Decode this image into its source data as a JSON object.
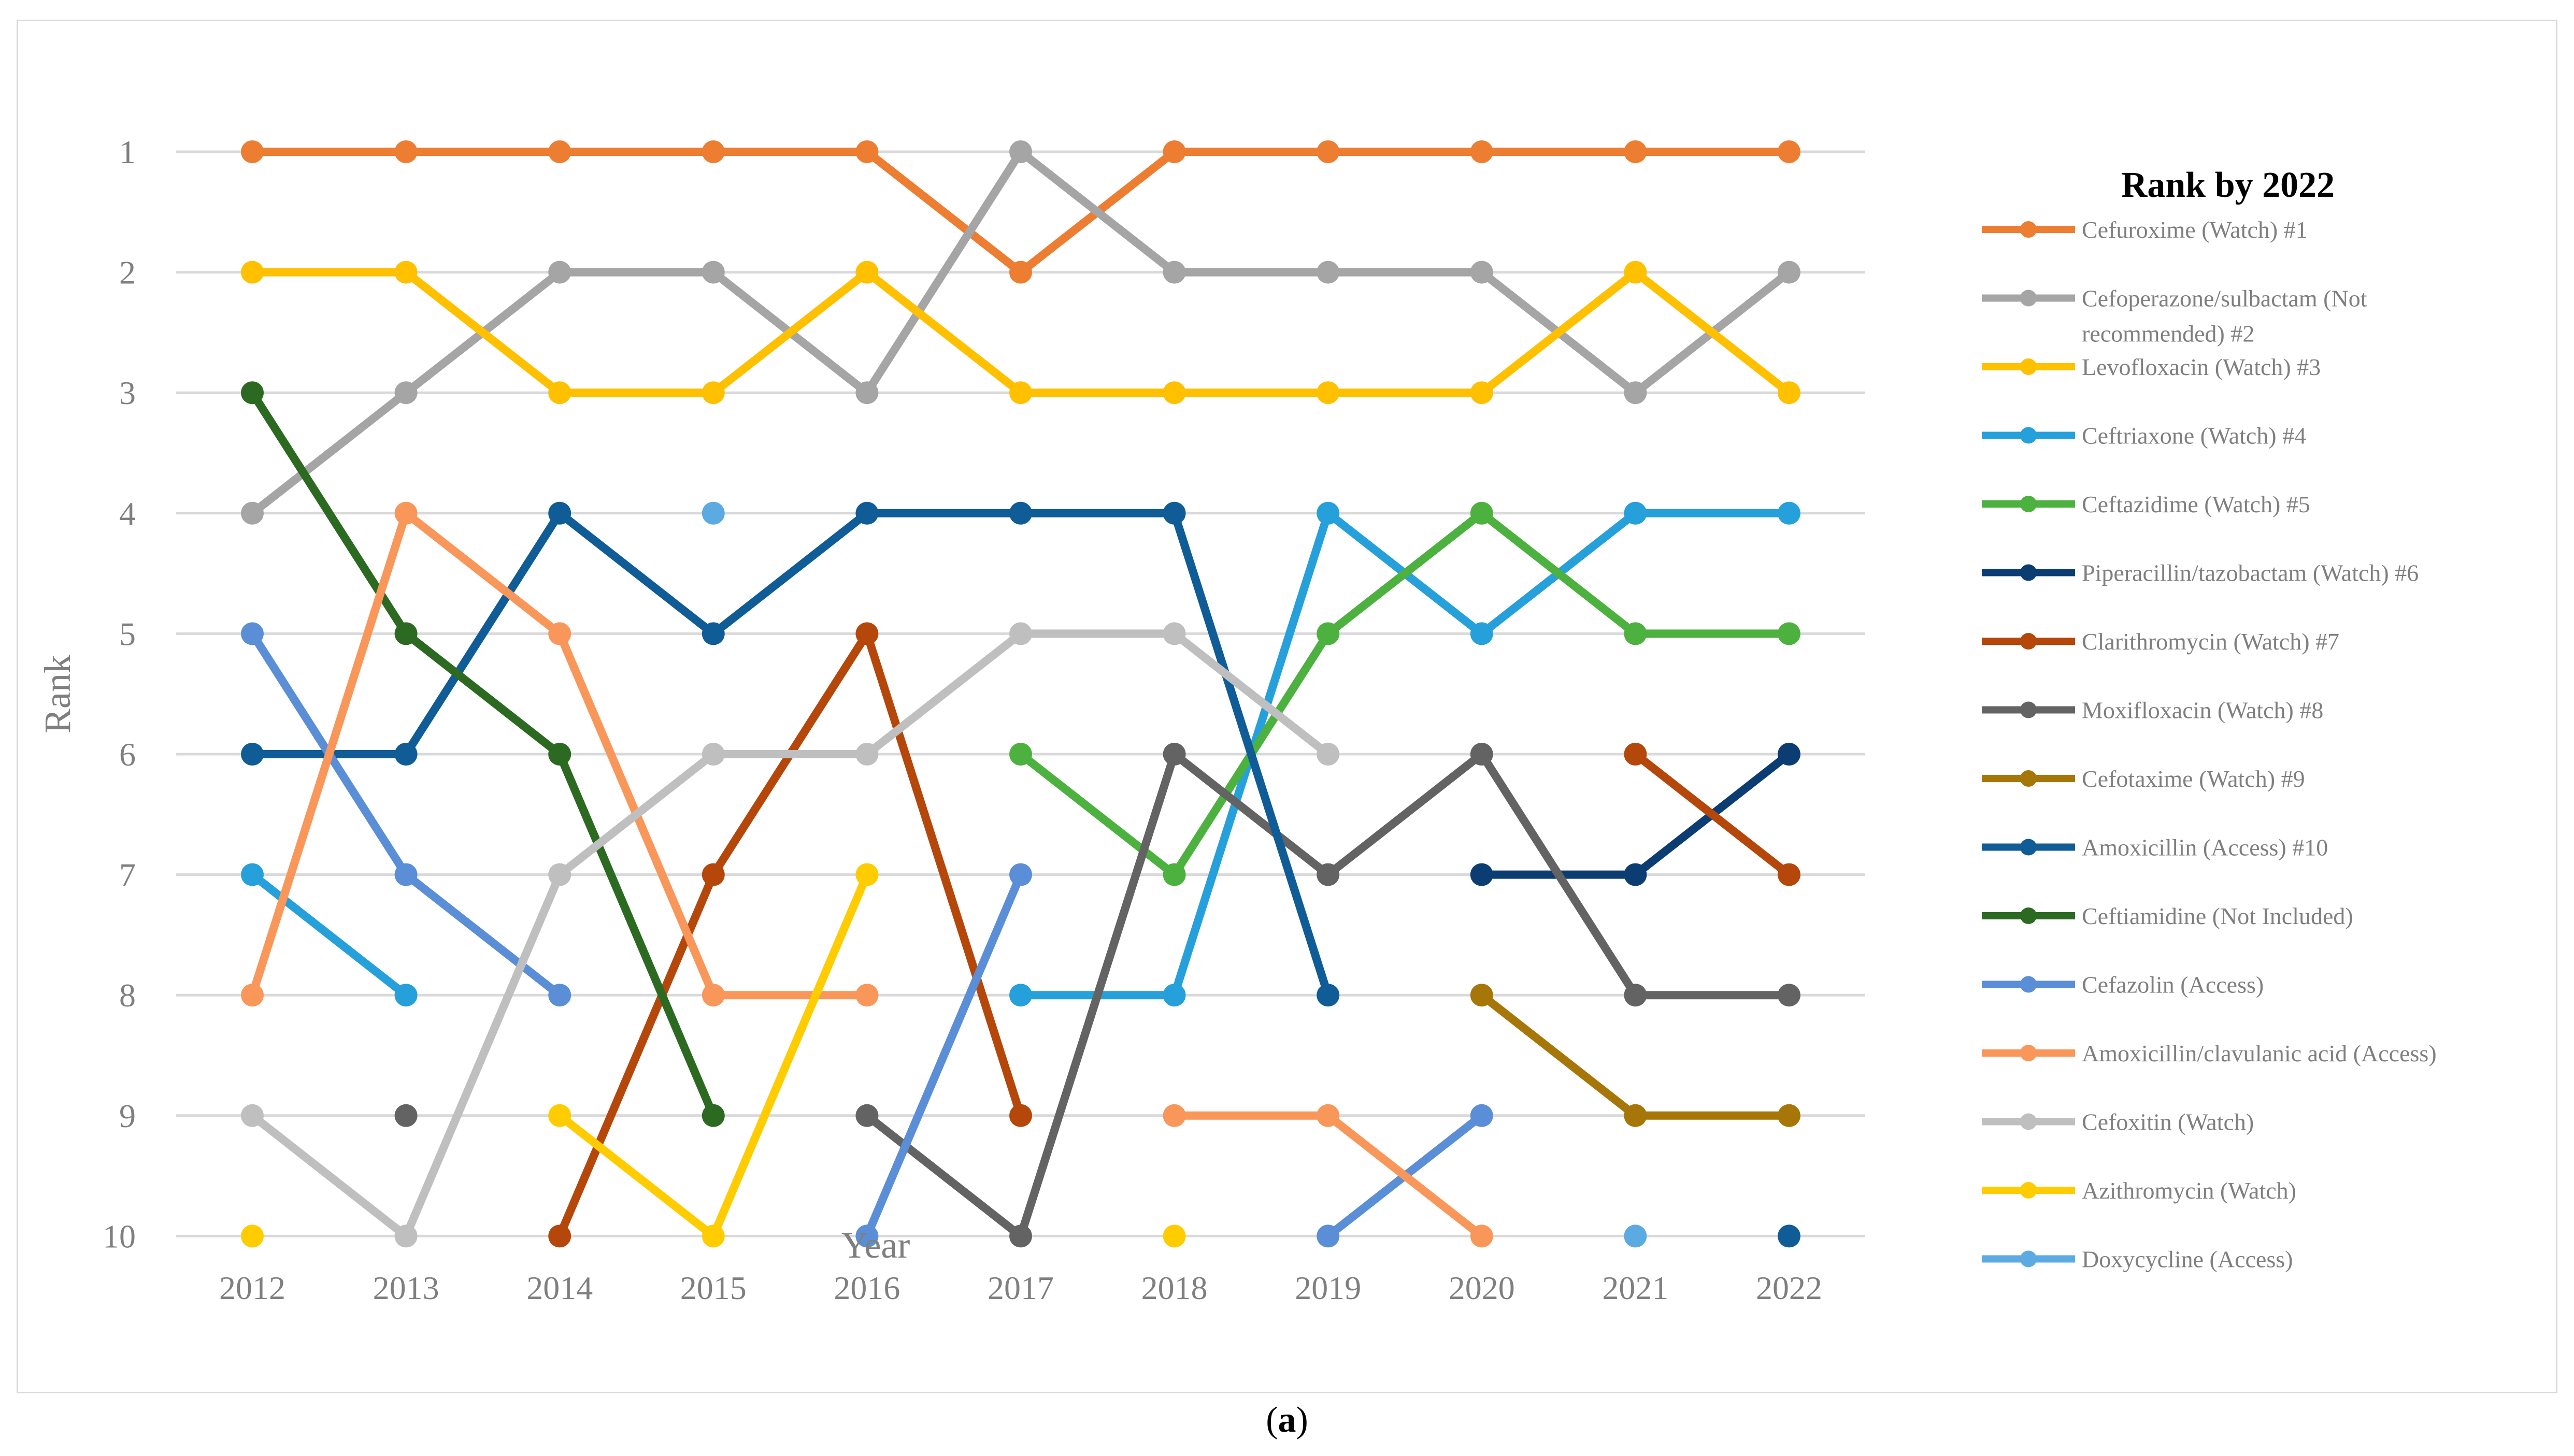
{
  "caption_letter": "a",
  "chart_data": {
    "type": "line",
    "title": "",
    "xlabel": "Year",
    "ylabel": "Rank",
    "x": [
      2012,
      2013,
      2014,
      2015,
      2016,
      2017,
      2018,
      2019,
      2020,
      2021,
      2022
    ],
    "x_tick_labels": [
      "2012",
      "2013",
      "2014",
      "2015",
      "2016",
      "2017",
      "2018",
      "2019",
      "2020",
      "2021",
      "2022"
    ],
    "y_tick_labels": [
      "1",
      "2",
      "3",
      "4",
      "5",
      "6",
      "7",
      "8",
      "9",
      "10"
    ],
    "ylim": [
      1,
      10
    ],
    "y_inverted": true,
    "grid": "horizontal",
    "legend_title": "Rank by 2022",
    "legend_position": "right",
    "series": [
      {
        "name": "Cefuroxime (Watch) #1",
        "color": "#ED7D31",
        "values": [
          1,
          1,
          1,
          1,
          1,
          2,
          1,
          1,
          1,
          1,
          1
        ]
      },
      {
        "name": "Cefoperazone/sulbactam (Not recommended) #2",
        "legend_lines": [
          "Cefoperazone/sulbactam (Not",
          "recommended) #2"
        ],
        "color": "#A5A5A5",
        "values": [
          4,
          3,
          2,
          2,
          3,
          1,
          2,
          2,
          2,
          3,
          2
        ]
      },
      {
        "name": "Levofloxacin (Watch) #3",
        "color": "#FFC000",
        "values": [
          2,
          2,
          3,
          3,
          2,
          3,
          3,
          3,
          3,
          2,
          3
        ]
      },
      {
        "name": "Ceftriaxone (Watch) #4",
        "color": "#26A0DA",
        "values": [
          7,
          8,
          null,
          null,
          null,
          8,
          8,
          4,
          5,
          4,
          4
        ]
      },
      {
        "name": "Ceftazidime (Watch) #5",
        "color": "#4DB13F",
        "values": [
          null,
          null,
          null,
          null,
          null,
          6,
          7,
          5,
          4,
          5,
          5
        ]
      },
      {
        "name": "Piperacillin/tazobactam (Watch) #6",
        "color": "#0B3D73",
        "values": [
          null,
          null,
          null,
          null,
          null,
          null,
          null,
          null,
          7,
          7,
          6
        ]
      },
      {
        "name": "Clarithromycin (Watch) #7",
        "color": "#B5470B",
        "values": [
          null,
          null,
          10,
          7,
          5,
          9,
          null,
          null,
          null,
          6,
          7
        ]
      },
      {
        "name": "Moxifloxacin (Watch) #8",
        "color": "#636363",
        "values": [
          null,
          9,
          null,
          null,
          9,
          10,
          6,
          7,
          6,
          8,
          8
        ]
      },
      {
        "name": "Cefotaxime (Watch) #9",
        "color": "#A67609",
        "values": [
          null,
          null,
          null,
          null,
          null,
          null,
          null,
          null,
          8,
          9,
          9
        ]
      },
      {
        "name": "Amoxicillin (Access) #10",
        "color": "#0F5C96",
        "values": [
          6,
          6,
          4,
          5,
          4,
          4,
          4,
          8,
          null,
          null,
          10
        ]
      },
      {
        "name": "Ceftiamidine (Not Included)",
        "color": "#2C6A22",
        "values": [
          3,
          5,
          6,
          9,
          null,
          null,
          null,
          null,
          null,
          null,
          null
        ]
      },
      {
        "name": "Cefazolin (Access)",
        "color": "#5A8ED6",
        "values": [
          5,
          7,
          8,
          null,
          10,
          7,
          null,
          10,
          9,
          null,
          null
        ]
      },
      {
        "name": "Amoxicillin/clavulanic acid (Access)",
        "color": "#F9965A",
        "values": [
          8,
          4,
          5,
          8,
          8,
          null,
          9,
          9,
          10,
          null,
          null
        ]
      },
      {
        "name": "Cefoxitin (Watch)",
        "color": "#BFBFBF",
        "values": [
          9,
          10,
          7,
          6,
          6,
          5,
          5,
          6,
          null,
          null,
          null
        ]
      },
      {
        "name": "Azithromycin (Watch)",
        "color": "#FFCC00",
        "values": [
          10,
          null,
          9,
          10,
          7,
          null,
          10,
          null,
          null,
          null,
          null
        ]
      },
      {
        "name": "Doxycycline (Access)",
        "color": "#5BAAE1",
        "values": [
          null,
          null,
          null,
          4,
          null,
          null,
          null,
          null,
          null,
          10,
          null
        ]
      }
    ]
  }
}
